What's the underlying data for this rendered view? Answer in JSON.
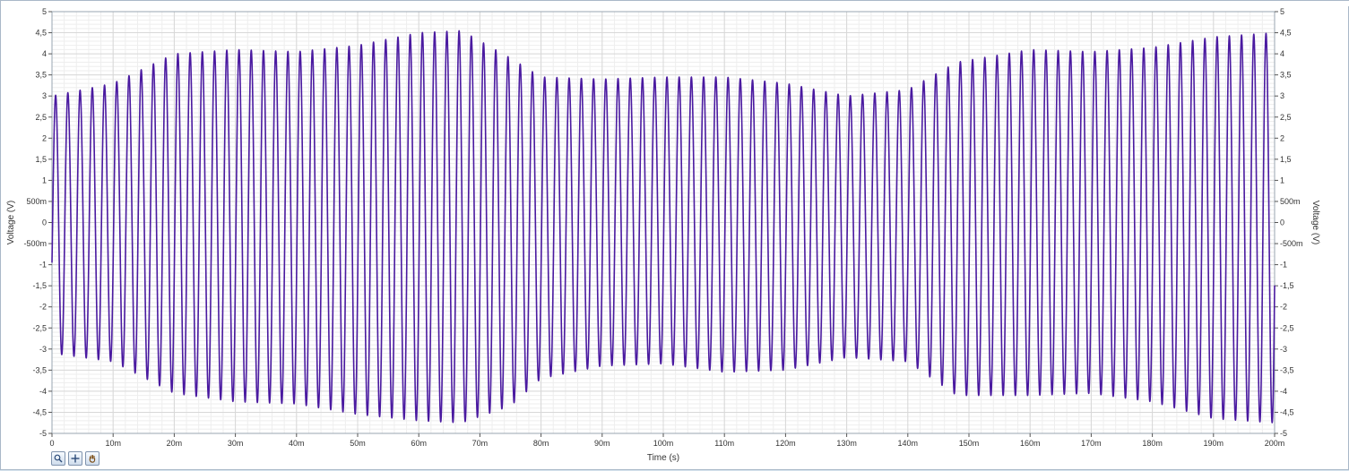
{
  "chart_data": {
    "type": "line",
    "title": "",
    "xlabel": "Time (s)",
    "ylabel": "Voltage (V)",
    "y2label": "Voltage (V)",
    "xlim": [
      0,
      0.2
    ],
    "ylim": [
      -5,
      5
    ],
    "grid": true,
    "x_ticks": [
      {
        "v": 0,
        "label": "0"
      },
      {
        "v": 0.01,
        "label": "10m"
      },
      {
        "v": 0.02,
        "label": "20m"
      },
      {
        "v": 0.03,
        "label": "30m"
      },
      {
        "v": 0.04,
        "label": "40m"
      },
      {
        "v": 0.05,
        "label": "50m"
      },
      {
        "v": 0.06,
        "label": "60m"
      },
      {
        "v": 0.07,
        "label": "70m"
      },
      {
        "v": 0.08,
        "label": "80m"
      },
      {
        "v": 0.09,
        "label": "90m"
      },
      {
        "v": 0.1,
        "label": "100m"
      },
      {
        "v": 0.11,
        "label": "110m"
      },
      {
        "v": 0.12,
        "label": "120m"
      },
      {
        "v": 0.13,
        "label": "130m"
      },
      {
        "v": 0.14,
        "label": "140m"
      },
      {
        "v": 0.15,
        "label": "150m"
      },
      {
        "v": 0.16,
        "label": "160m"
      },
      {
        "v": 0.17,
        "label": "170m"
      },
      {
        "v": 0.18,
        "label": "180m"
      },
      {
        "v": 0.19,
        "label": "190m"
      },
      {
        "v": 0.2,
        "label": "200m"
      }
    ],
    "y_ticks": [
      {
        "v": 5,
        "label": "5"
      },
      {
        "v": 4.5,
        "label": "4,5"
      },
      {
        "v": 4,
        "label": "4"
      },
      {
        "v": 3.5,
        "label": "3,5"
      },
      {
        "v": 3,
        "label": "3"
      },
      {
        "v": 2.5,
        "label": "2,5"
      },
      {
        "v": 2,
        "label": "2"
      },
      {
        "v": 1.5,
        "label": "1,5"
      },
      {
        "v": 1,
        "label": "1"
      },
      {
        "v": 0.5,
        "label": "500m"
      },
      {
        "v": 0,
        "label": "0"
      },
      {
        "v": -0.5,
        "label": "-500m"
      },
      {
        "v": -1,
        "label": "-1"
      },
      {
        "v": -1.5,
        "label": "-1,5"
      },
      {
        "v": -2,
        "label": "-2"
      },
      {
        "v": -2.5,
        "label": "-2,5"
      },
      {
        "v": -3,
        "label": "-3"
      },
      {
        "v": -3.5,
        "label": "-3,5"
      },
      {
        "v": -4,
        "label": "-4"
      },
      {
        "v": -4.5,
        "label": "-4,5"
      },
      {
        "v": -5,
        "label": "-5"
      }
    ],
    "series": [
      {
        "color": "#4a1aa0",
        "frequency_hz": 500,
        "envelope": {
          "t": [
            0,
            0.01,
            0.02,
            0.03,
            0.04,
            0.05,
            0.06,
            0.067,
            0.075,
            0.08,
            0.09,
            0.1,
            0.11,
            0.12,
            0.13,
            0.14,
            0.148,
            0.16,
            0.17,
            0.18,
            0.19,
            0.2
          ],
          "max": [
            3.0,
            3.3,
            4.0,
            4.1,
            4.05,
            4.2,
            4.5,
            4.55,
            3.9,
            3.45,
            3.4,
            3.45,
            3.45,
            3.3,
            3.0,
            3.15,
            3.8,
            4.1,
            4.05,
            4.15,
            4.4,
            4.5
          ],
          "min": [
            -3.1,
            -3.3,
            -4.05,
            -4.25,
            -4.3,
            -4.55,
            -4.7,
            -4.75,
            -4.35,
            -3.7,
            -3.4,
            -3.35,
            -3.55,
            -3.5,
            -3.2,
            -3.3,
            -4.1,
            -4.1,
            -4.05,
            -4.25,
            -4.65,
            -4.75
          ]
        }
      }
    ]
  },
  "toolbar": {
    "zoom_icon": "zoom-icon",
    "cursor_icon": "crosshair-icon",
    "pan_icon": "hand-icon"
  }
}
